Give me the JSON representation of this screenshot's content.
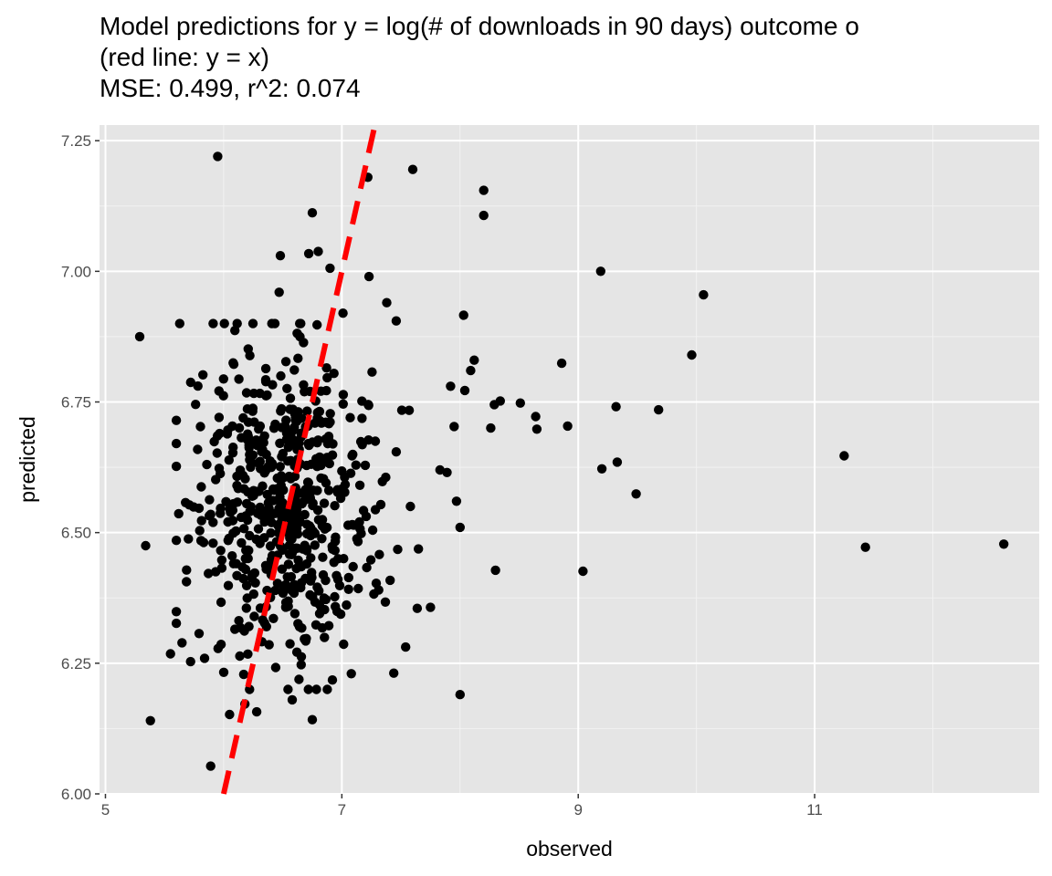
{
  "chart_data": {
    "type": "scatter",
    "title": "Model predictions for y = log(# of downloads in 90 days) outcome o",
    "subtitle_lines": [
      "(red line: y = x)",
      "MSE: 0.499, r^2: 0.074"
    ],
    "xlabel": "observed",
    "ylabel": "predicted",
    "xlim": [
      4.95,
      12.9
    ],
    "ylim": [
      6.0,
      7.28
    ],
    "x_ticks": [
      5,
      7,
      9,
      11
    ],
    "x_tick_labels": [
      "5",
      "7",
      "9",
      "11"
    ],
    "y_ticks": [
      6.0,
      6.25,
      6.5,
      6.75,
      7.0,
      7.25
    ],
    "y_tick_labels": [
      "6.00",
      "6.25",
      "6.50",
      "6.75",
      "7.00",
      "7.25"
    ],
    "grid": true,
    "reference_line": {
      "label": "y = x",
      "slope": 1,
      "intercept": 0,
      "color": "#ff0000",
      "style": "dashed"
    },
    "point_color": "#000000",
    "panel_background": "#e5e5e5",
    "outliers": [
      {
        "x": 5.29,
        "y": 6.875
      },
      {
        "x": 5.34,
        "y": 6.475
      },
      {
        "x": 5.38,
        "y": 6.14
      },
      {
        "x": 5.55,
        "y": 6.268
      },
      {
        "x": 5.95,
        "y": 7.22
      },
      {
        "x": 5.89,
        "y": 6.053
      },
      {
        "x": 7.22,
        "y": 7.18
      },
      {
        "x": 7.6,
        "y": 7.195
      },
      {
        "x": 6.75,
        "y": 7.112
      },
      {
        "x": 8.2,
        "y": 7.155
      },
      {
        "x": 8.2,
        "y": 7.107
      },
      {
        "x": 9.19,
        "y": 7.0
      },
      {
        "x": 10.06,
        "y": 6.955
      },
      {
        "x": 9.96,
        "y": 6.84
      },
      {
        "x": 8.86,
        "y": 6.824
      },
      {
        "x": 8.03,
        "y": 6.916
      },
      {
        "x": 8.12,
        "y": 6.83
      },
      {
        "x": 8.09,
        "y": 6.81
      },
      {
        "x": 8.34,
        "y": 6.752
      },
      {
        "x": 8.29,
        "y": 6.745
      },
      {
        "x": 8.51,
        "y": 6.748
      },
      {
        "x": 8.64,
        "y": 6.722
      },
      {
        "x": 8.65,
        "y": 6.698
      },
      {
        "x": 8.91,
        "y": 6.704
      },
      {
        "x": 9.32,
        "y": 6.741
      },
      {
        "x": 9.68,
        "y": 6.735
      },
      {
        "x": 8.26,
        "y": 6.7
      },
      {
        "x": 9.2,
        "y": 6.622
      },
      {
        "x": 9.33,
        "y": 6.635
      },
      {
        "x": 9.49,
        "y": 6.574
      },
      {
        "x": 11.25,
        "y": 6.647
      },
      {
        "x": 11.43,
        "y": 6.472
      },
      {
        "x": 12.6,
        "y": 6.478
      },
      {
        "x": 9.04,
        "y": 6.426
      },
      {
        "x": 8.3,
        "y": 6.428
      },
      {
        "x": 8.0,
        "y": 6.19
      },
      {
        "x": 7.75,
        "y": 6.357
      },
      {
        "x": 7.54,
        "y": 6.281
      },
      {
        "x": 7.08,
        "y": 6.23
      },
      {
        "x": 6.92,
        "y": 6.218
      },
      {
        "x": 6.75,
        "y": 6.142
      },
      {
        "x": 6.58,
        "y": 6.18
      },
      {
        "x": 6.05,
        "y": 6.152
      },
      {
        "x": 6.18,
        "y": 6.172
      },
      {
        "x": 6.28,
        "y": 6.157
      },
      {
        "x": 5.72,
        "y": 6.253
      },
      {
        "x": 7.95,
        "y": 6.703
      },
      {
        "x": 7.92,
        "y": 6.78
      },
      {
        "x": 8.04,
        "y": 6.772
      },
      {
        "x": 7.97,
        "y": 6.56
      },
      {
        "x": 8.0,
        "y": 6.51
      },
      {
        "x": 6.48,
        "y": 7.03
      },
      {
        "x": 6.72,
        "y": 7.034
      },
      {
        "x": 6.8,
        "y": 7.038
      },
      {
        "x": 6.9,
        "y": 7.006
      },
      {
        "x": 7.23,
        "y": 6.99
      },
      {
        "x": 6.47,
        "y": 6.96
      },
      {
        "x": 7.38,
        "y": 6.94
      },
      {
        "x": 7.46,
        "y": 6.905
      },
      {
        "x": 7.01,
        "y": 6.92
      },
      {
        "x": 7.83,
        "y": 6.62
      },
      {
        "x": 7.89,
        "y": 6.615
      },
      {
        "x": 7.58,
        "y": 6.55
      }
    ],
    "cluster": {
      "note": "dense point cloud; ~580 points drawn deterministically",
      "count": 580,
      "x_mean": 6.52,
      "x_sd": 0.38,
      "y_mean": 6.545,
      "y_sd": 0.14,
      "seed": 20240517
    }
  }
}
